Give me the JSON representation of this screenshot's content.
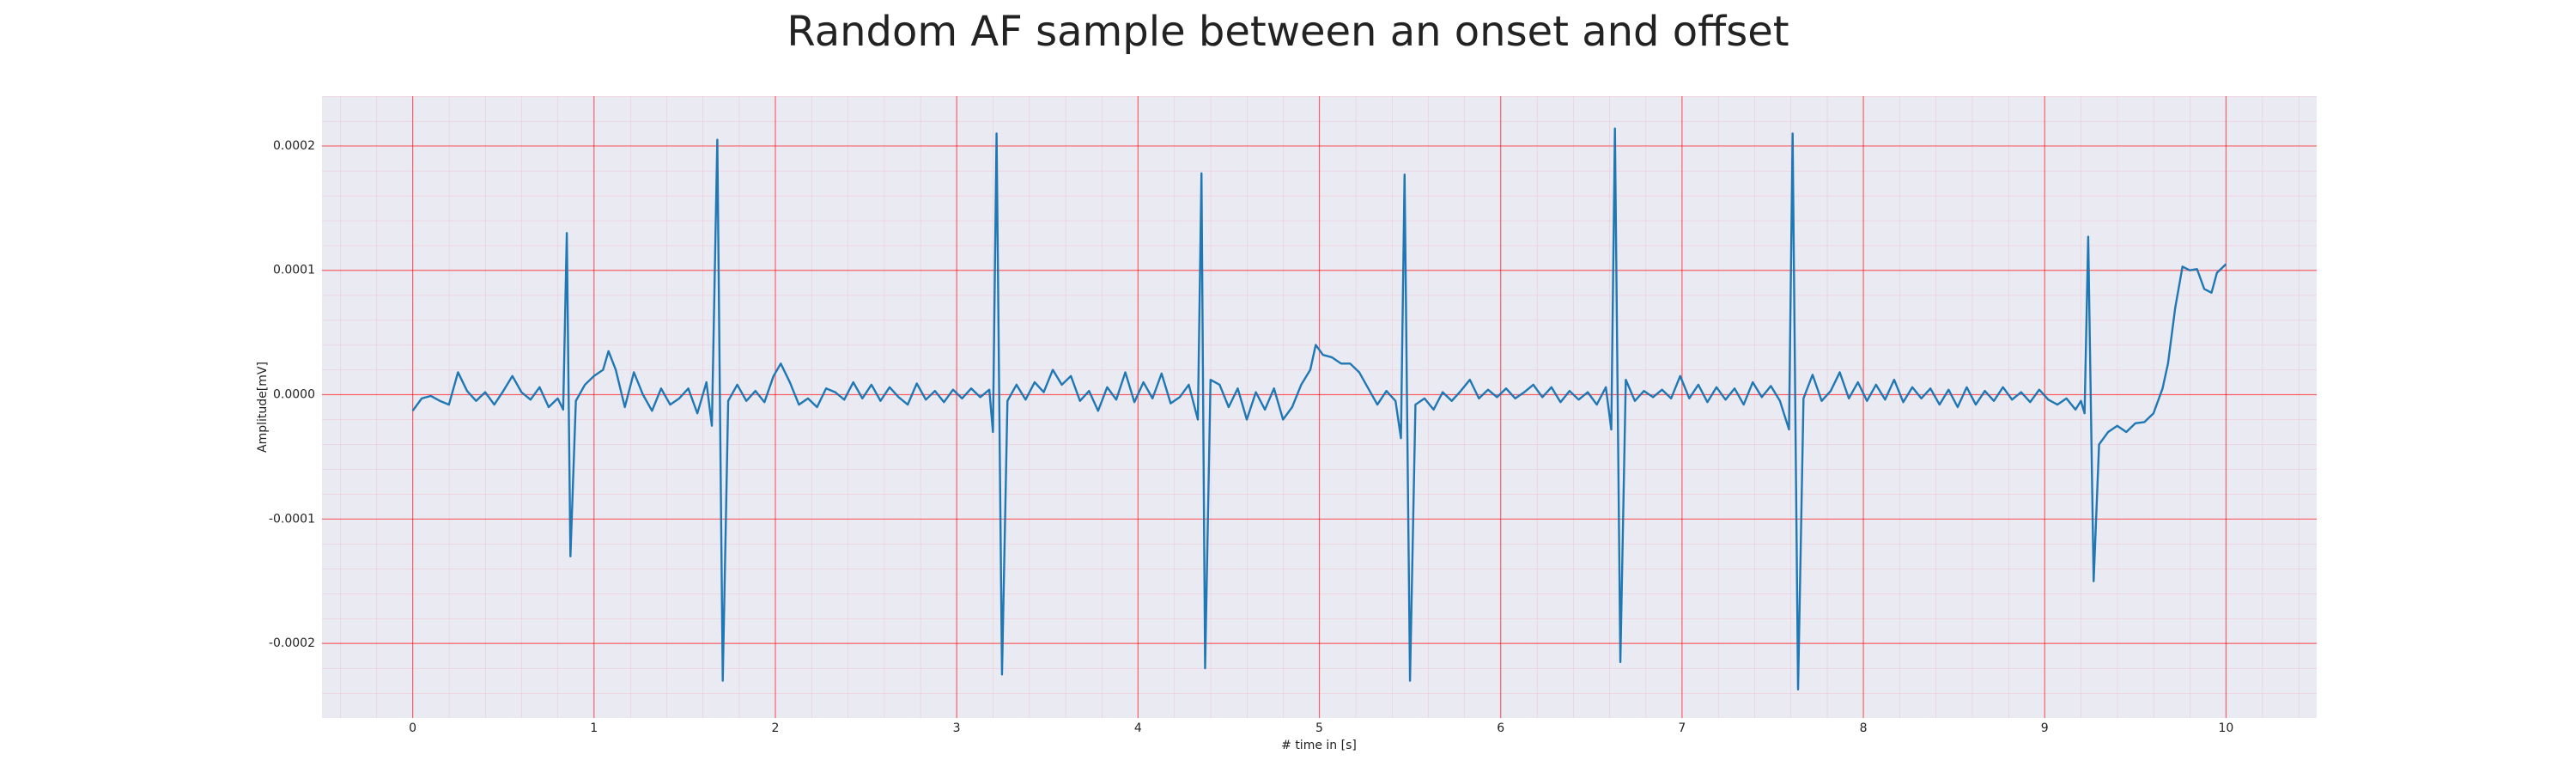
{
  "chart_data": {
    "type": "line",
    "title": "Random AF sample between an onset and offset",
    "xlabel": "# time in [s]",
    "ylabel": "Amplitude[mV]",
    "color": "#1f77b4",
    "grid": true,
    "minor_grid": true,
    "xlim": [
      -0.5,
      10.5
    ],
    "ylim": [
      -0.00026,
      0.00024
    ],
    "xticks": [
      0,
      1,
      2,
      3,
      4,
      5,
      6,
      7,
      8,
      9,
      10
    ],
    "yticks": [
      -0.0002,
      -0.0001,
      {
        "value": 0,
        "label": "0.0000"
      },
      0.0001,
      0.0002
    ],
    "x": [
      0.0,
      0.05,
      0.1,
      0.15,
      0.2,
      0.25,
      0.3,
      0.35,
      0.4,
      0.45,
      0.5,
      0.55,
      0.6,
      0.65,
      0.7,
      0.75,
      0.8,
      0.83,
      0.85,
      0.87,
      0.9,
      0.95,
      1.0,
      1.05,
      1.08,
      1.12,
      1.17,
      1.22,
      1.27,
      1.32,
      1.37,
      1.42,
      1.47,
      1.52,
      1.57,
      1.62,
      1.65,
      1.68,
      1.71,
      1.74,
      1.79,
      1.84,
      1.89,
      1.94,
      1.99,
      2.03,
      2.08,
      2.13,
      2.18,
      2.23,
      2.28,
      2.33,
      2.38,
      2.43,
      2.48,
      2.53,
      2.58,
      2.63,
      2.68,
      2.73,
      2.78,
      2.83,
      2.88,
      2.93,
      2.98,
      3.03,
      3.08,
      3.13,
      3.18,
      3.2,
      3.22,
      3.25,
      3.28,
      3.33,
      3.38,
      3.43,
      3.48,
      3.53,
      3.58,
      3.63,
      3.68,
      3.73,
      3.78,
      3.83,
      3.88,
      3.93,
      3.98,
      4.03,
      4.08,
      4.13,
      4.18,
      4.23,
      4.28,
      4.33,
      4.35,
      4.37,
      4.4,
      4.45,
      4.5,
      4.55,
      4.6,
      4.65,
      4.7,
      4.75,
      4.8,
      4.85,
      4.9,
      4.95,
      4.98,
      5.02,
      5.07,
      5.12,
      5.17,
      5.22,
      5.27,
      5.32,
      5.37,
      5.42,
      5.45,
      5.47,
      5.5,
      5.53,
      5.58,
      5.63,
      5.68,
      5.73,
      5.78,
      5.83,
      5.88,
      5.93,
      5.98,
      6.03,
      6.08,
      6.13,
      6.18,
      6.23,
      6.28,
      6.33,
      6.38,
      6.43,
      6.48,
      6.53,
      6.58,
      6.61,
      6.63,
      6.66,
      6.69,
      6.74,
      6.79,
      6.84,
      6.89,
      6.94,
      6.99,
      7.04,
      7.09,
      7.14,
      7.19,
      7.24,
      7.29,
      7.34,
      7.39,
      7.44,
      7.49,
      7.54,
      7.59,
      7.61,
      7.64,
      7.67,
      7.72,
      7.77,
      7.82,
      7.87,
      7.92,
      7.97,
      8.02,
      8.07,
      8.12,
      8.17,
      8.22,
      8.27,
      8.32,
      8.37,
      8.42,
      8.47,
      8.52,
      8.57,
      8.62,
      8.67,
      8.72,
      8.77,
      8.82,
      8.87,
      8.92,
      8.97,
      9.02,
      9.07,
      9.12,
      9.17,
      9.2,
      9.22,
      9.24,
      9.27,
      9.3,
      9.35,
      9.4,
      9.45,
      9.5,
      9.55,
      9.6,
      9.65,
      9.68,
      9.72,
      9.76,
      9.8,
      9.84,
      9.88,
      9.92,
      9.95,
      10.0
    ],
    "values": [
      -1.3e-05,
      -3e-06,
      -1e-06,
      -5e-06,
      -8e-06,
      1.8e-05,
      3e-06,
      -5e-06,
      2e-06,
      -8e-06,
      3e-06,
      1.5e-05,
      2e-06,
      -4e-06,
      6e-06,
      -1e-05,
      -3e-06,
      -1.2e-05,
      0.00013,
      -0.00013,
      -5e-06,
      8e-06,
      1.5e-05,
      2e-05,
      3.5e-05,
      2e-05,
      -1e-05,
      1.8e-05,
      0,
      -1.3e-05,
      5e-06,
      -8e-06,
      -3e-06,
      5e-06,
      -1.5e-05,
      1e-05,
      -2.5e-05,
      0.000205,
      -0.00023,
      -5e-06,
      8e-06,
      -5e-06,
      3e-06,
      -6e-06,
      1.5e-05,
      2.5e-05,
      1e-05,
      -8e-06,
      -3e-06,
      -1e-05,
      5e-06,
      2e-06,
      -4e-06,
      1e-05,
      -3e-06,
      8e-06,
      -5e-06,
      6e-06,
      -2e-06,
      -8e-06,
      9e-06,
      -4e-06,
      3e-06,
      -6e-06,
      4e-06,
      -3e-06,
      5e-06,
      -2e-06,
      4e-06,
      -3e-05,
      0.00021,
      -0.000225,
      -5e-06,
      8e-06,
      -4e-06,
      1e-05,
      2e-06,
      2e-05,
      8e-06,
      1.5e-05,
      -5e-06,
      3e-06,
      -1.3e-05,
      6e-06,
      -4e-06,
      1.8e-05,
      -6e-06,
      1e-05,
      -3e-06,
      1.7e-05,
      -7e-06,
      -2e-06,
      8e-06,
      -2e-05,
      0.000178,
      -0.00022,
      1.2e-05,
      8e-06,
      -1e-05,
      5e-06,
      -2e-05,
      2e-06,
      -1.2e-05,
      5e-06,
      -2e-05,
      -1e-05,
      8e-06,
      2e-05,
      4e-05,
      3.2e-05,
      3e-05,
      2.5e-05,
      2.5e-05,
      1.8e-05,
      5e-06,
      -8e-06,
      3e-06,
      -5e-06,
      -3.5e-05,
      0.000177,
      -0.00023,
      -8e-06,
      -3e-06,
      -1.2e-05,
      2e-06,
      -5e-06,
      3e-06,
      1.2e-05,
      -3e-06,
      4e-06,
      -2e-06,
      5e-06,
      -3e-06,
      2e-06,
      8e-06,
      -2e-06,
      6e-06,
      -6e-06,
      3e-06,
      -4e-06,
      2e-06,
      -8e-06,
      6e-06,
      -2.8e-05,
      0.000214,
      -0.000215,
      1.2e-05,
      -5e-06,
      3e-06,
      -2e-06,
      4e-06,
      -3e-06,
      1.5e-05,
      -3e-06,
      8e-06,
      -6e-06,
      6e-06,
      -4e-06,
      5e-06,
      -8e-06,
      1e-05,
      -2e-06,
      7e-06,
      -5e-06,
      -2.8e-05,
      0.00021,
      -0.000237,
      -3e-06,
      1.6e-05,
      -5e-06,
      3e-06,
      1.8e-05,
      -3e-06,
      1e-05,
      -5e-06,
      8e-06,
      -4e-06,
      1.2e-05,
      -6e-06,
      6e-06,
      -3e-06,
      5e-06,
      -8e-06,
      4e-06,
      -1e-05,
      6e-06,
      -8e-06,
      3e-06,
      -5e-06,
      6e-06,
      -4e-06,
      2e-06,
      -6e-06,
      4e-06,
      -4e-06,
      -8e-06,
      -3e-06,
      -1.2e-05,
      -5e-06,
      -1.5e-05,
      0.000127,
      -0.00015,
      -4e-05,
      -3e-05,
      -2.5e-05,
      -3e-05,
      -2.3e-05,
      -2.2e-05,
      -1.5e-05,
      5e-06,
      2.5e-05,
      7e-05,
      0.000103,
      0.0001,
      0.000101,
      8.5e-05,
      8.2e-05,
      9.8e-05,
      0.000105
    ]
  }
}
